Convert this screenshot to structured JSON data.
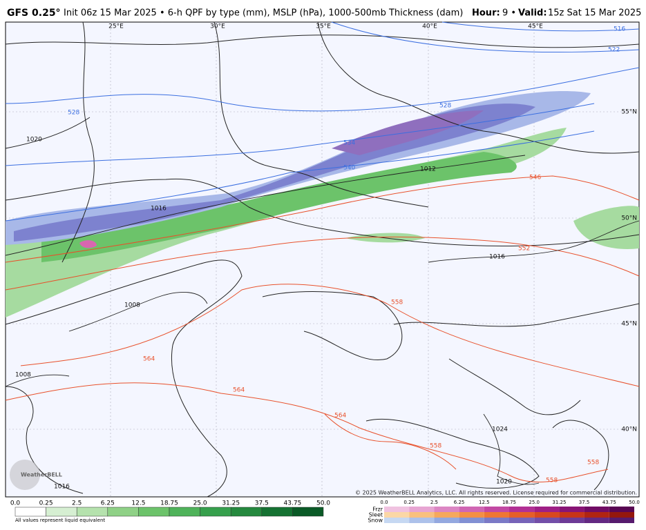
{
  "header": {
    "model": "GFS 0.25°",
    "description": "Init 06z 15 Mar 2025 • 6-h QPF by type (mm), MSLP (hPa), 1000-500mb Thickness (dam)",
    "hour_label": "Hour:",
    "hour_value": "9 •",
    "valid_label": "Valid:",
    "valid_value": "15z Sat 15 Mar 2025"
  },
  "map": {
    "longitudes": [
      "25°E",
      "30°E",
      "35°E",
      "40°E",
      "45°E"
    ],
    "latitudes": [
      "55°N",
      "50°N",
      "45°N",
      "40°N"
    ],
    "thickness_labels": [
      "516",
      "522",
      "528",
      "528",
      "534",
      "540",
      "546",
      "552",
      "558",
      "564",
      "564",
      "564",
      "558",
      "558",
      "558"
    ],
    "pressure_labels": [
      "1020",
      "1016",
      "1012",
      "1016",
      "1008",
      "1008",
      "1024",
      "1020",
      "1016"
    ],
    "logo": "WeatherBELL",
    "copyright": "© 2025 WeatherBELL Analytics, LLC. All rights reserved. License required for commercial distribution."
  },
  "legend": {
    "rain_ticks": [
      "0.0",
      "0.25",
      "2.5",
      "6.25",
      "12.5",
      "18.75",
      "25.0",
      "31.25",
      "37.5",
      "43.75",
      "50.0"
    ],
    "mixed_ticks": [
      "0.0",
      "0.25",
      "2.5",
      "6.25",
      "12.5",
      "18.75",
      "25.0",
      "31.25",
      "37.5",
      "43.75",
      "50.0"
    ],
    "types": [
      "Frzr",
      "Sleet",
      "Snow"
    ],
    "footnote": "All values represent liquid equivalent"
  }
}
